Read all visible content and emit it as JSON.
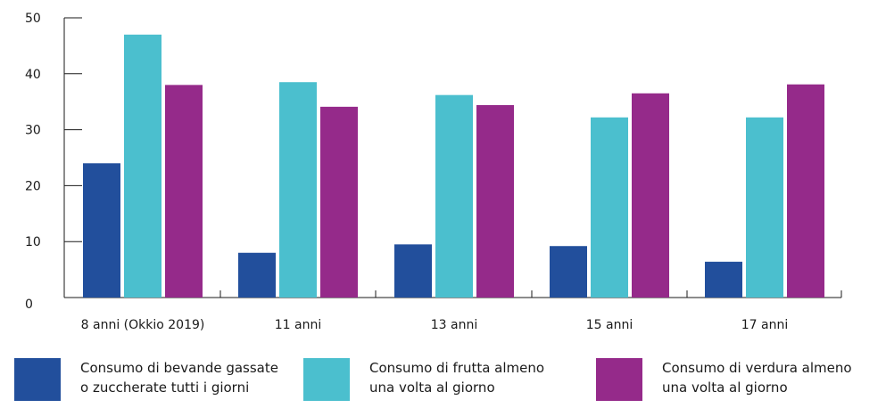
{
  "chart_data": {
    "type": "bar",
    "categories": [
      "8 anni (Okkio 2019)",
      "11 anni",
      "13 anni",
      "15 anni",
      "17 anni"
    ],
    "series": [
      {
        "name": "Consumo di bevande gassate o zuccherate tutti i giorni",
        "legend_lines": [
          "Consumo di bevande gassate",
          "o zuccherate tutti i giorni"
        ],
        "color": "#224f9c",
        "values": [
          24,
          8,
          9.5,
          9.2,
          6.4
        ]
      },
      {
        "name": "Consumo di frutta almeno una volta al giorno",
        "legend_lines": [
          "Consumo di frutta almeno",
          "una volta al giorno"
        ],
        "color": "#4bbfce",
        "values": [
          47,
          38.5,
          36.2,
          32.2,
          32.2
        ]
      },
      {
        "name": "Consumo di verdura almeno una volta al giorno",
        "legend_lines": [
          "Consumo di verdura almeno",
          "una volta al giorno"
        ],
        "color": "#952a8a",
        "values": [
          38,
          34.1,
          34.4,
          36.5,
          38.1
        ]
      }
    ],
    "ylim": [
      0,
      50
    ],
    "yticks": [
      0,
      10,
      20,
      30,
      40,
      50
    ],
    "xlabel": "",
    "ylabel": "",
    "title": "",
    "grid": false,
    "legend_position": "bottom"
  }
}
